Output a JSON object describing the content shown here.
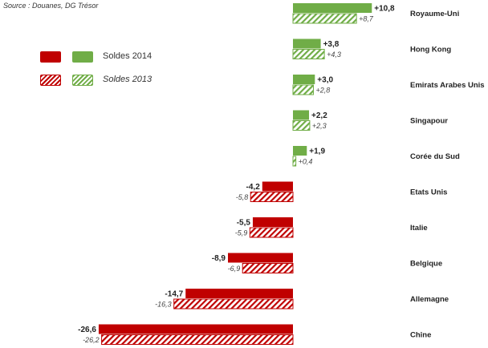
{
  "source": "Source : Douanes, DG Trésor",
  "legend": [
    {
      "label": "Soldes 2014",
      "style": "solid"
    },
    {
      "label": "Soldes 2013",
      "style": "hatched"
    }
  ],
  "colors": {
    "positive": "#70ad47",
    "negative": "#c00000"
  },
  "chart_data": {
    "type": "bar",
    "orientation": "horizontal",
    "categories": [
      "Royaume-Uni",
      "Hong Kong",
      "Emirats Arabes Unis",
      "Singapour",
      "Corée du Sud",
      "Etats Unis",
      "Italie",
      "Belgique",
      "Allemagne",
      "Chine"
    ],
    "series": [
      {
        "name": "Soldes 2014",
        "values": [
          10.8,
          3.8,
          3.0,
          2.2,
          1.9,
          -4.2,
          -5.5,
          -8.9,
          -14.7,
          -26.6
        ],
        "labels": [
          "+10,8",
          "+3,8",
          "+3,0",
          "+2,2",
          "+1,9",
          "-4,2",
          "-5,5",
          "-8,9",
          "-14,7",
          "-26,6"
        ]
      },
      {
        "name": "Soldes 2013",
        "values": [
          8.7,
          4.3,
          2.8,
          2.3,
          0.4,
          -5.8,
          -5.9,
          -6.9,
          -16.3,
          -26.2
        ],
        "labels": [
          "+8,7",
          "+4,3",
          "+2,8",
          "+2,3",
          "+0,4",
          "-5,8",
          "-5,9",
          "-6,9",
          "-16,3",
          "-26,2"
        ]
      }
    ]
  }
}
